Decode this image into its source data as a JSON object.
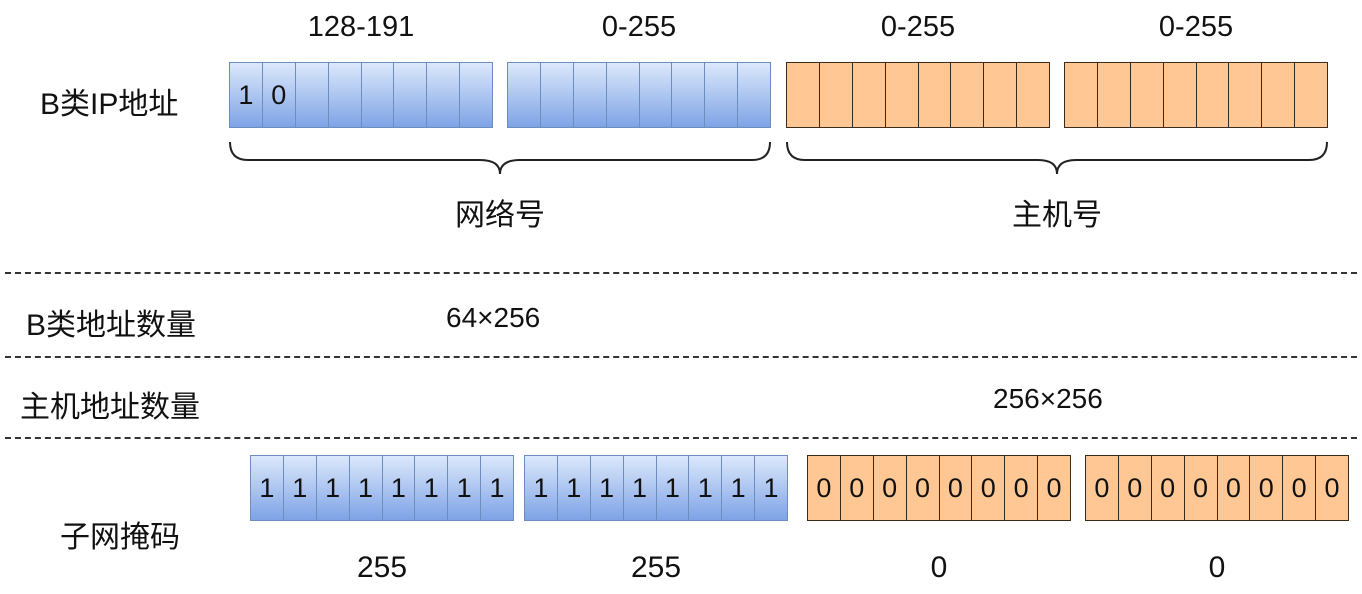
{
  "colors": {
    "network_fill": "#7ea3e6",
    "host_fill": "#ffc794"
  },
  "ip_row": {
    "label": "B类IP地址",
    "ranges": [
      "128-191",
      "0-255",
      "0-255",
      "0-255"
    ],
    "first_octet_bits": [
      "1",
      "0",
      "",
      "",
      "",
      "",
      "",
      ""
    ]
  },
  "braces": {
    "network": "网络号",
    "host": "主机号"
  },
  "count_rows": {
    "b_class_label": "B类地址数量",
    "b_class_value": "64×256",
    "host_label": "主机地址数量",
    "host_value": "256×256"
  },
  "mask_row": {
    "label": "子网掩码",
    "octets": [
      [
        "1",
        "1",
        "1",
        "1",
        "1",
        "1",
        "1",
        "1"
      ],
      [
        "1",
        "1",
        "1",
        "1",
        "1",
        "1",
        "1",
        "1"
      ],
      [
        "0",
        "0",
        "0",
        "0",
        "0",
        "0",
        "0",
        "0"
      ],
      [
        "0",
        "0",
        "0",
        "0",
        "0",
        "0",
        "0",
        "0"
      ]
    ],
    "values": [
      "255",
      "255",
      "0",
      "0"
    ]
  }
}
